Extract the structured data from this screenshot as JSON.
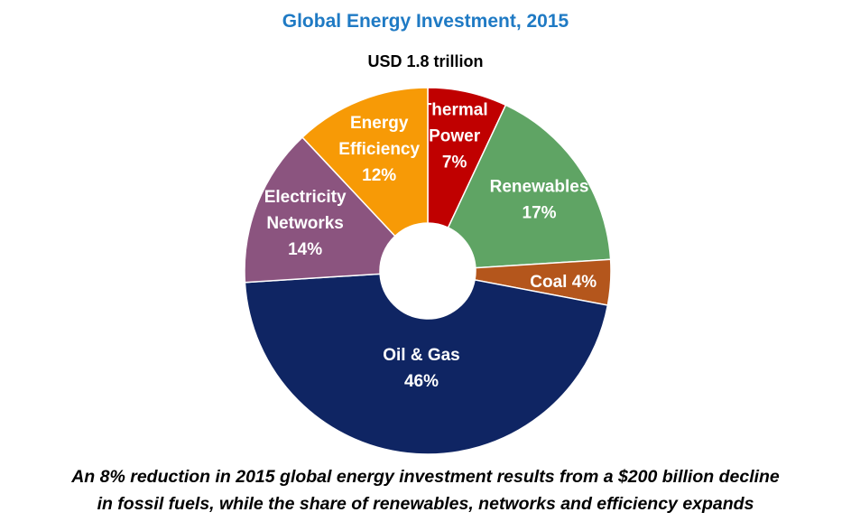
{
  "chart_data": {
    "type": "pie",
    "donut": true,
    "title": "Global Energy Investment, 2015",
    "subtitle": "USD 1.8 trillion",
    "categories": [
      "Thermal Power",
      "Renewables",
      "Coal",
      "Oil & Gas",
      "Electricity Networks",
      "Energy Efficiency"
    ],
    "values": [
      7,
      17,
      4,
      46,
      14,
      12
    ],
    "unit": "%",
    "slices": [
      {
        "label_lines": [
          "Thermal",
          "Power",
          "7%"
        ],
        "color": "#c00000",
        "text_color": "#ffffff"
      },
      {
        "label_lines": [
          "Renewables",
          "17%"
        ],
        "color": "#5fa464",
        "text_color": "#ffffff"
      },
      {
        "label_lines": [
          "Coal 4%"
        ],
        "color": "#b4561c",
        "text_color": "#ffffff"
      },
      {
        "label_lines": [
          "Oil & Gas",
          "46%"
        ],
        "color": "#0f2563",
        "text_color": "#ffffff"
      },
      {
        "label_lines": [
          "Electricity",
          "Networks",
          "14%"
        ],
        "color": "#8b547f",
        "text_color": "#ffffff"
      },
      {
        "label_lines": [
          "Energy",
          "Efficiency",
          "12%"
        ],
        "color": "#f79a06",
        "text_color": "#ffffff"
      }
    ],
    "legend": "none"
  },
  "caption": {
    "line1": "An 8% reduction in 2015 global energy investment results from a $200 billion decline",
    "line2": "in fossil fuels, while the share of renewables, networks and efficiency expands"
  }
}
